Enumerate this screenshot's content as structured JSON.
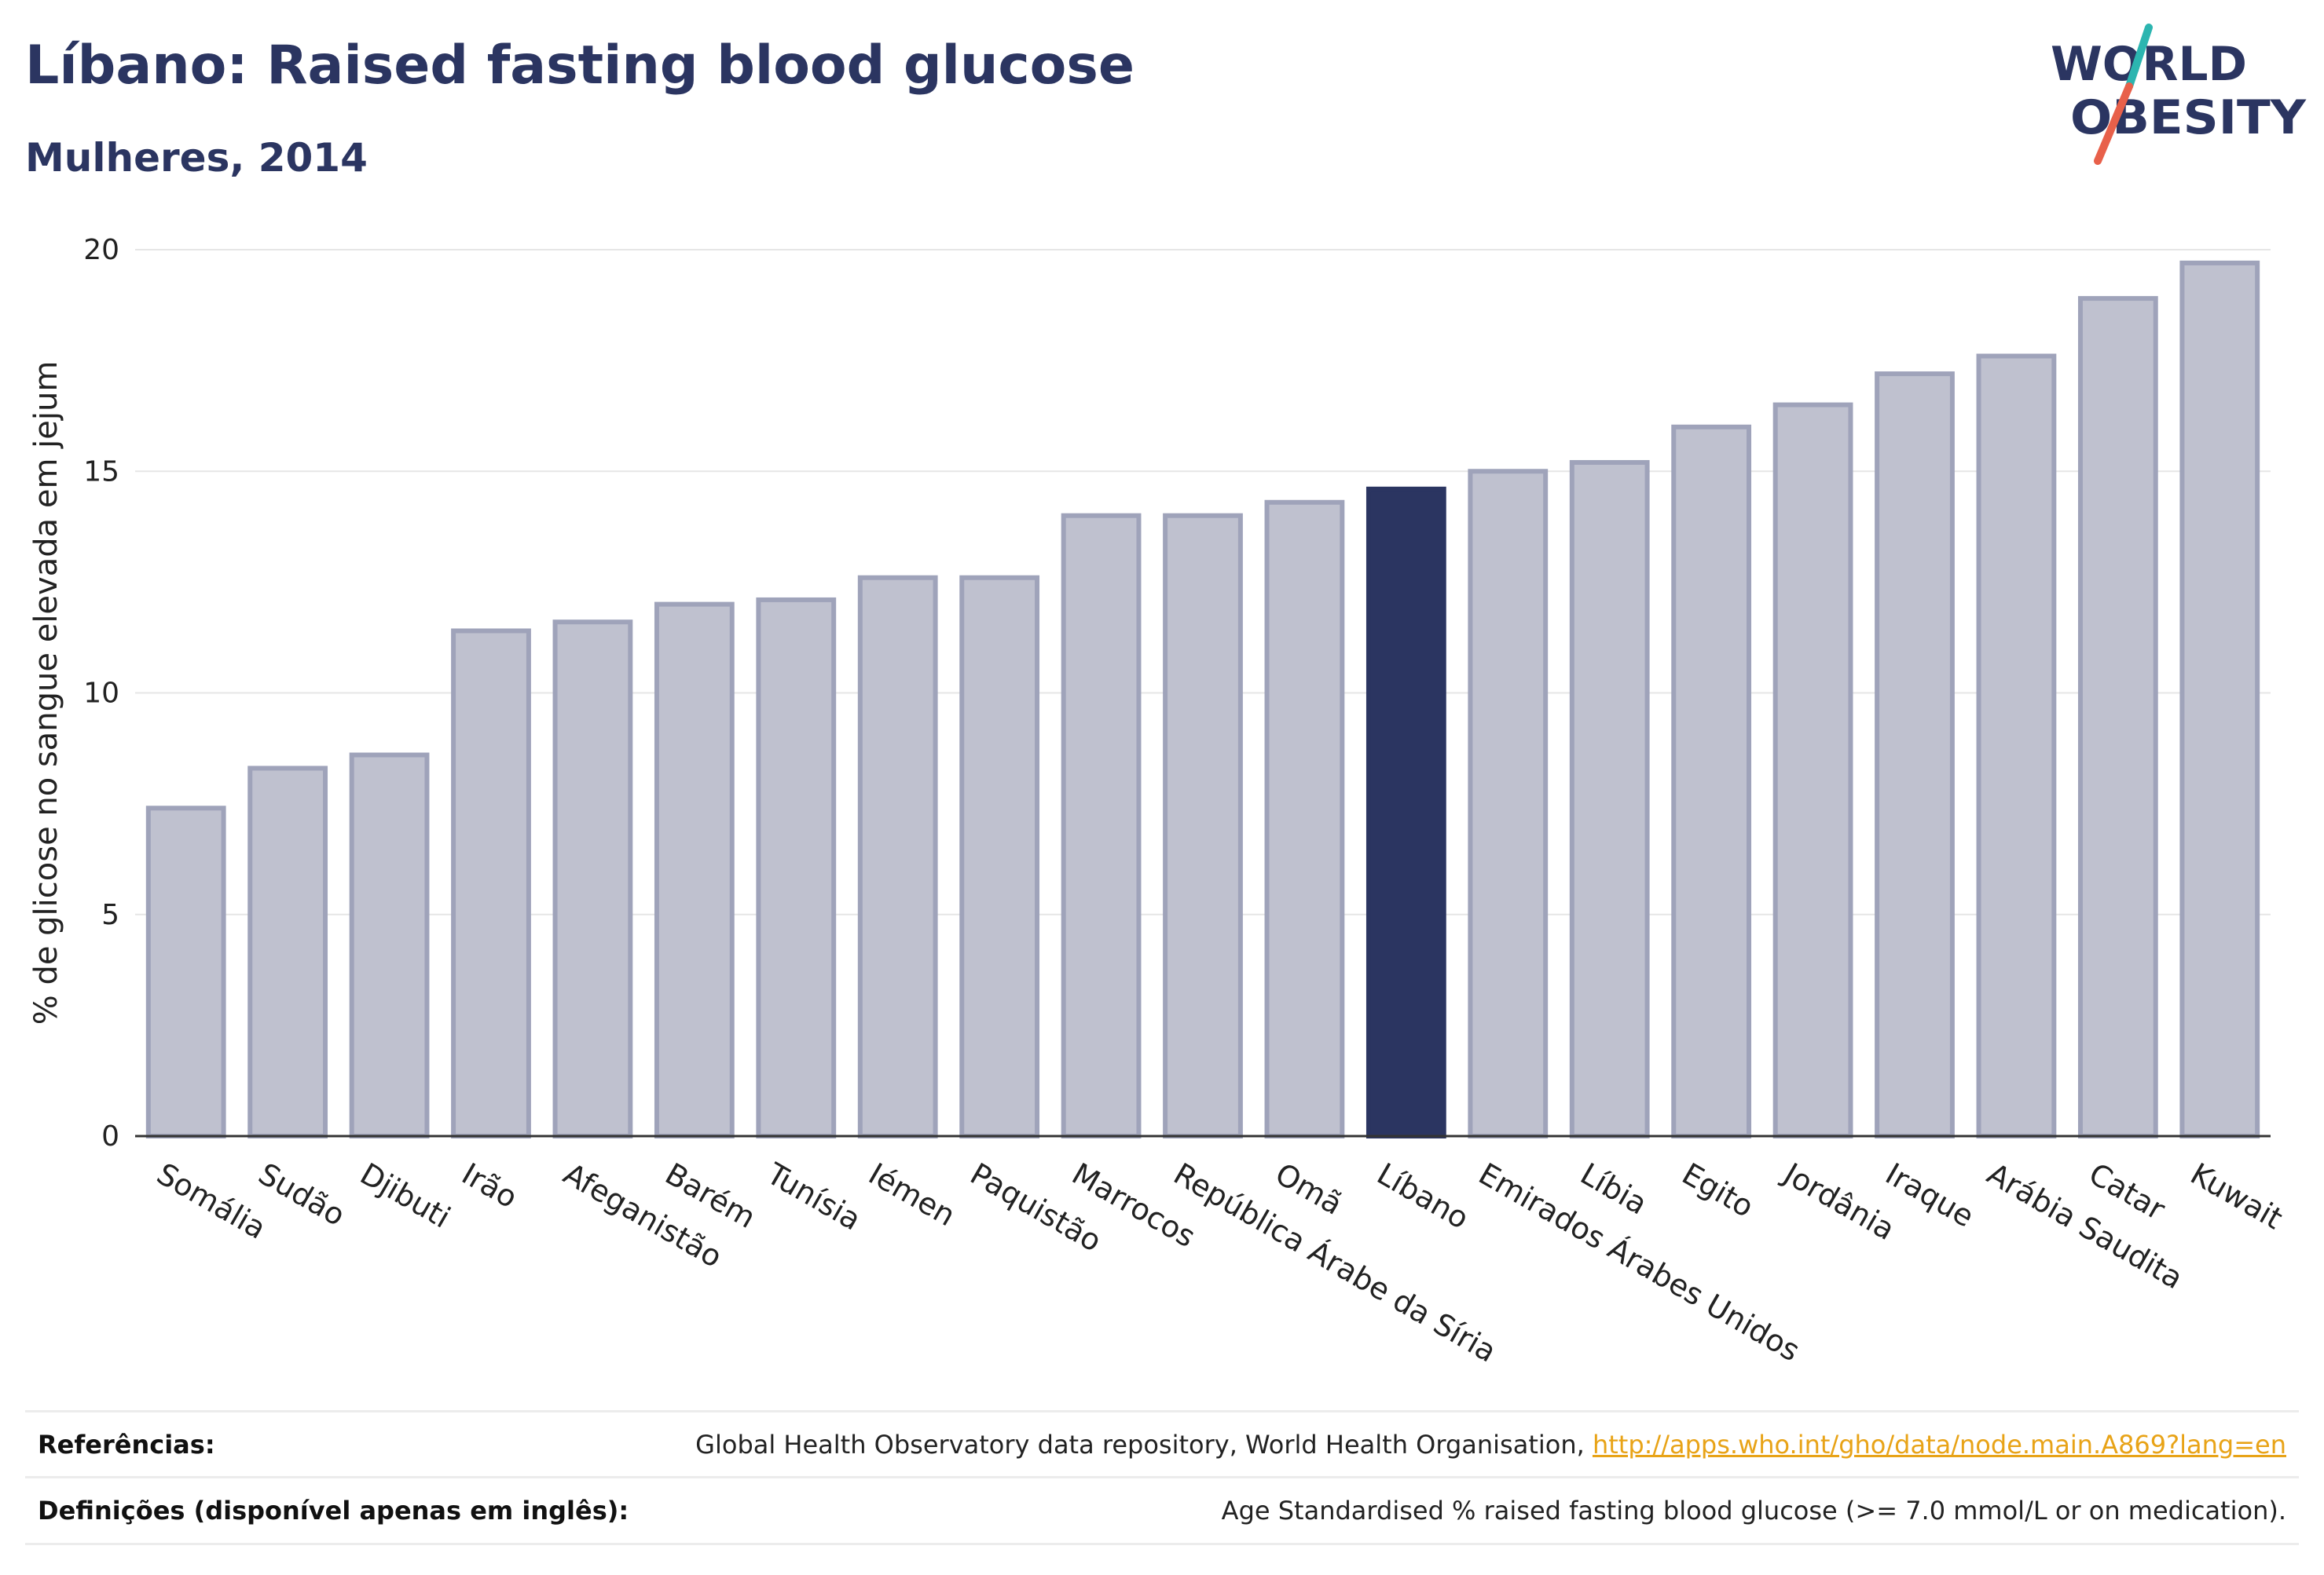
{
  "header": {
    "title": "Líbano: Raised fasting blood glucose",
    "subtitle": "Mulheres, 2014"
  },
  "logo": {
    "line1": "WORLD",
    "line2": "OBESITY",
    "colors": {
      "text": "#2b3561",
      "slash_top": "#2cb5b0",
      "slash_bottom": "#e8604a"
    }
  },
  "chart_data": {
    "type": "bar",
    "title": "Líbano: Raised fasting blood glucose",
    "subtitle": "Mulheres, 2014",
    "xlabel": "",
    "ylabel": "% de glicose no sangue elevada em jejum",
    "ylim": [
      0,
      20
    ],
    "yticks": [
      0,
      5,
      10,
      15,
      20
    ],
    "grid": true,
    "highlight": "Líbano",
    "colors": {
      "bar": "#bfc1cf",
      "bar_border": "#9fa3ba",
      "highlight": "#2b3561",
      "grid": "#e6e6e6"
    },
    "categories": [
      "Somália",
      "Sudão",
      "Djibuti",
      "Irão",
      "Afeganistão",
      "Barém",
      "Tunísia",
      "Iémen",
      "Paquistão",
      "Marrocos",
      "República Árabe da Síria",
      "Omã",
      "Líbano",
      "Emirados Árabes Unidos",
      "Líbia",
      "Egito",
      "Jordânia",
      "Iraque",
      "Arábia Saudita",
      "Catar",
      "Kuwait"
    ],
    "values": [
      7.4,
      8.3,
      8.6,
      11.4,
      11.6,
      12.0,
      12.1,
      12.6,
      12.6,
      14.0,
      14.0,
      14.3,
      14.6,
      15.0,
      15.2,
      16.0,
      16.5,
      17.2,
      17.6,
      18.9,
      19.7
    ]
  },
  "footer": {
    "references_label": "Referências:",
    "references_text": "Global Health Observatory data repository, World Health Organisation, ",
    "references_link": "http://apps.who.int/gho/data/node.main.A869?lang=en",
    "definitions_label": "Definições (disponível apenas em inglês):",
    "definitions_text": "Age Standardised % raised fasting blood glucose (>= 7.0 mmol/L or on medication)."
  }
}
